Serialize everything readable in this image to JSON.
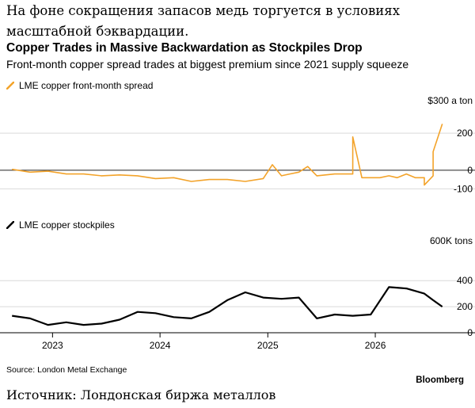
{
  "caption": {
    "line1": "На фоне сокращения запасов медь торгуется в условиях",
    "line2": "масштабной бэквардации."
  },
  "colors": {
    "spread": "#f3a32a",
    "stockpiles": "#000000",
    "grid": "#d9d9d9",
    "zero": "#222222"
  },
  "source_text": "Source: London Metal Exchange",
  "brand": "Bloomberg",
  "ru_source": "Источник: Лондонская биржа металлов",
  "chart_data": {
    "type": "line",
    "title": "Copper Trades in Massive Backwardation as Stockpiles Drop",
    "subtitle": "Front-month copper spread trades at biggest premium since 2021 supply squeeze",
    "x_ticks": [
      "2023",
      "2024",
      "2025",
      "2026"
    ],
    "panels": [
      {
        "legend": "LME copper front-month spread",
        "unit_label": "$300 a ton",
        "y_ticks": [
          200,
          0,
          -100
        ],
        "y_tick_labels": [
          "200",
          "0",
          "-100"
        ],
        "ylim": [
          -120,
          320
        ],
        "series": [
          {
            "name": "LME copper front-month spread",
            "x": [
              "2022-08",
              "2022-10",
              "2022-12",
              "2023-02",
              "2023-04",
              "2023-06",
              "2023-08",
              "2023-10",
              "2023-12",
              "2024-02",
              "2024-04",
              "2024-06",
              "2024-08",
              "2024-10",
              "2024-12",
              "2025-01",
              "2025-02",
              "2025-03",
              "2025-04",
              "2025-05",
              "2025-06",
              "2025-08",
              "2025-10",
              "2025-10",
              "2025-11",
              "2025-12",
              "2026-01",
              "2026-02",
              "2026-03",
              "2026-04",
              "2026-05",
              "2026-06",
              "2026-06",
              "2026-07",
              "2026-07",
              "2026-08"
            ],
            "values": [
              5,
              -10,
              -5,
              -20,
              -20,
              -30,
              -25,
              -30,
              -45,
              -40,
              -60,
              -50,
              -50,
              -60,
              -45,
              30,
              -30,
              -20,
              -10,
              20,
              -30,
              -20,
              -20,
              180,
              -40,
              -40,
              -40,
              -30,
              -40,
              -20,
              -40,
              -40,
              -80,
              -30,
              100,
              250
            ]
          }
        ]
      },
      {
        "legend": "LME copper stockpiles",
        "unit_label": "600K tons",
        "y_ticks": [
          400,
          200,
          0
        ],
        "y_tick_labels": [
          "400",
          "200",
          "0"
        ],
        "ylim": [
          0,
          620
        ],
        "series": [
          {
            "name": "LME copper stockpiles",
            "x": [
              "2022-08",
              "2022-10",
              "2022-12",
              "2023-02",
              "2023-04",
              "2023-06",
              "2023-08",
              "2023-10",
              "2023-12",
              "2024-02",
              "2024-04",
              "2024-06",
              "2024-08",
              "2024-10",
              "2024-12",
              "2025-02",
              "2025-04",
              "2025-06",
              "2025-08",
              "2025-10",
              "2025-12",
              "2026-02",
              "2026-04",
              "2026-06",
              "2026-07",
              "2026-08"
            ],
            "values": [
              130,
              110,
              60,
              80,
              60,
              70,
              100,
              160,
              150,
              120,
              110,
              160,
              250,
              310,
              270,
              260,
              270,
              110,
              140,
              130,
              140,
              350,
              340,
              300,
              250,
              200
            ]
          }
        ]
      }
    ]
  }
}
